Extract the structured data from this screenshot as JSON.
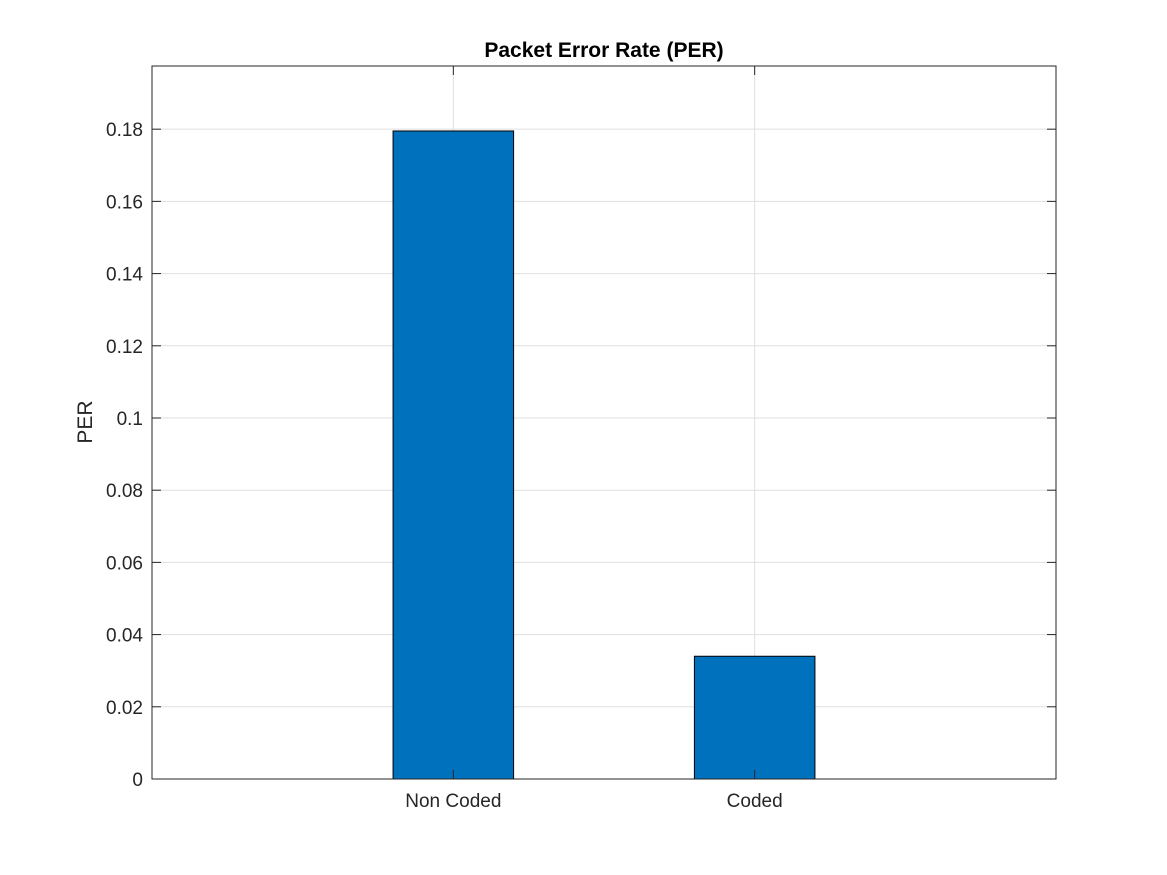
{
  "chart_data": {
    "type": "bar",
    "title": "Packet Error Rate (PER)",
    "xlabel": "",
    "ylabel": "PER",
    "categories": [
      "Non Coded",
      "Coded"
    ],
    "values": [
      0.1795,
      0.034
    ],
    "xlim": [
      0.5,
      3.5
    ],
    "x_positions": [
      1.5,
      2.5
    ],
    "bar_width": 0.4,
    "ylim": [
      0,
      0.1975
    ],
    "yticks": [
      0,
      0.02,
      0.04,
      0.06,
      0.08,
      0.1,
      0.12,
      0.14,
      0.16,
      0.18
    ],
    "ytick_labels": [
      "0",
      "0.02",
      "0.04",
      "0.06",
      "0.08",
      "0.1",
      "0.12",
      "0.14",
      "0.16",
      "0.18"
    ],
    "grid": true,
    "bar_color": "#0072BD",
    "bar_edge_color": "#000000",
    "grid_color": "#DFDFDF",
    "axis_color": "#262626"
  }
}
